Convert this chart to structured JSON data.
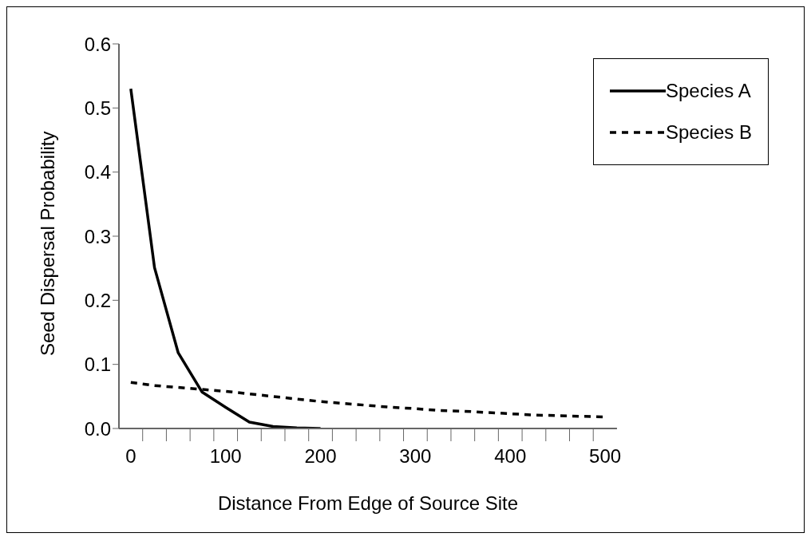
{
  "chart_data": {
    "type": "line",
    "xlabel": "Distance From Edge of Source Site",
    "ylabel": "Seed Dispersal Probability",
    "x": [
      0,
      25,
      50,
      75,
      100,
      125,
      150,
      175,
      200,
      225,
      250,
      275,
      300,
      325,
      350,
      375,
      400,
      425,
      450,
      475,
      500
    ],
    "series": [
      {
        "name": "Species A",
        "color": "#000000",
        "line_style": "solid",
        "x": [
          0,
          25,
          50,
          75,
          100,
          125,
          150,
          175,
          200
        ],
        "values": [
          0.53,
          0.251,
          0.118,
          0.057,
          0.033,
          0.01,
          0.003,
          0.001,
          0
        ]
      },
      {
        "name": "Species B",
        "color": "#000000",
        "line_style": "dashed",
        "values": [
          0.072,
          0.067,
          0.064,
          0.061,
          0.058,
          0.054,
          0.05,
          0.046,
          0.042,
          0.039,
          0.036,
          0.033,
          0.031,
          0.028,
          0.027,
          0.025,
          0.023,
          0.021,
          0.02,
          0.019,
          0.018
        ]
      }
    ],
    "xlim": [
      -12.5,
      512.5
    ],
    "xticks": [
      0,
      100,
      200,
      300,
      400,
      500,
      {
        "value": 12.5,
        "label": null
      },
      {
        "value": 37.5,
        "label": null
      },
      {
        "value": 62.5,
        "label": null
      },
      {
        "value": 87.5,
        "label": null
      },
      {
        "value": 112.5,
        "label": null
      },
      {
        "value": 137.5,
        "label": null
      },
      {
        "value": 162.5,
        "label": null
      },
      {
        "value": 187.5,
        "label": null
      },
      {
        "value": 212.5,
        "label": null
      },
      {
        "value": 237.5,
        "label": null
      },
      {
        "value": 262.5,
        "label": null
      },
      {
        "value": 287.5,
        "label": null
      },
      {
        "value": 312.5,
        "label": null
      },
      {
        "value": 337.5,
        "label": null
      },
      {
        "value": 362.5,
        "label": null
      },
      {
        "value": 387.5,
        "label": null
      },
      {
        "value": 412.5,
        "label": null
      },
      {
        "value": 437.5,
        "label": null
      },
      {
        "value": 462.5,
        "label": null
      },
      {
        "value": 487.5,
        "label": null
      }
    ],
    "ylim": [
      0,
      0.6
    ],
    "yticks": [
      {
        "value": 0,
        "label": "0.0"
      },
      {
        "value": 0.1,
        "label": "0.1"
      },
      {
        "value": 0.2,
        "label": "0.2"
      },
      {
        "value": 0.3,
        "label": "0.3"
      },
      {
        "value": 0.4,
        "label": "0.4"
      },
      {
        "value": 0.5,
        "label": "0.5"
      },
      {
        "value": 0.6,
        "label": "0.6"
      }
    ],
    "grid": false,
    "legend": "top right",
    "marker": "none"
  }
}
